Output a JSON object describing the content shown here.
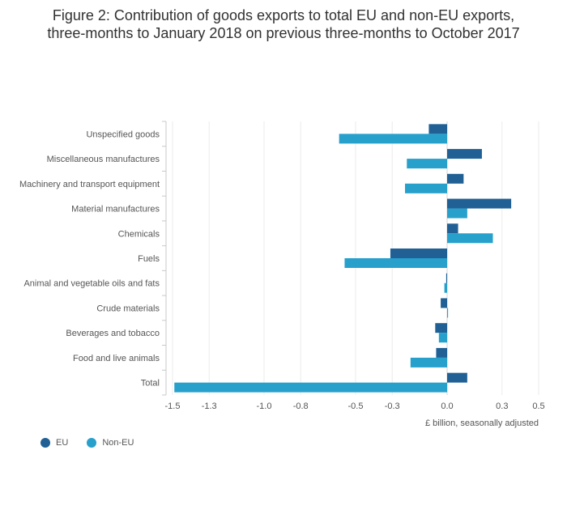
{
  "title_line1": "Figure 2: Contribution of goods exports to total EU and non-EU exports,",
  "title_line2": "three-months to January 2018 on previous three-months to October 2017",
  "chart_data": {
    "type": "bar",
    "orientation": "horizontal",
    "categories": [
      "Unspecified goods",
      "Miscellaneous manufactures",
      "Machinery and transport equipment",
      "Material manufactures",
      "Chemicals",
      "Fuels",
      "Animal and vegetable oils and fats",
      "Crude materials",
      "Beverages and tobacco",
      "Food and live animals",
      "Total"
    ],
    "series": [
      {
        "name": "EU",
        "color": "#206095",
        "values": [
          -0.1,
          0.19,
          0.09,
          0.35,
          0.06,
          -0.31,
          -0.005,
          -0.035,
          -0.065,
          -0.06,
          0.11
        ]
      },
      {
        "name": "Non-EU",
        "color": "#27a0cc",
        "values": [
          -0.59,
          -0.22,
          -0.23,
          0.11,
          0.25,
          -0.56,
          -0.015,
          0.005,
          -0.045,
          -0.2,
          -1.49
        ]
      }
    ],
    "xlim": [
      -1.5,
      0.5
    ],
    "xticks": [
      -1.5,
      -1.3,
      -1.0,
      -0.8,
      -0.5,
      -0.3,
      0.0,
      0.3,
      0.5
    ],
    "xtick_labels": [
      "-1.5",
      "-1.3",
      "-1.0",
      "-0.8",
      "-0.5",
      "-0.3",
      "0.0",
      "0.3",
      "0.5"
    ],
    "xlabel": "£ billion, seasonally adjusted",
    "legend_position": "bottom-left",
    "grid": true
  }
}
